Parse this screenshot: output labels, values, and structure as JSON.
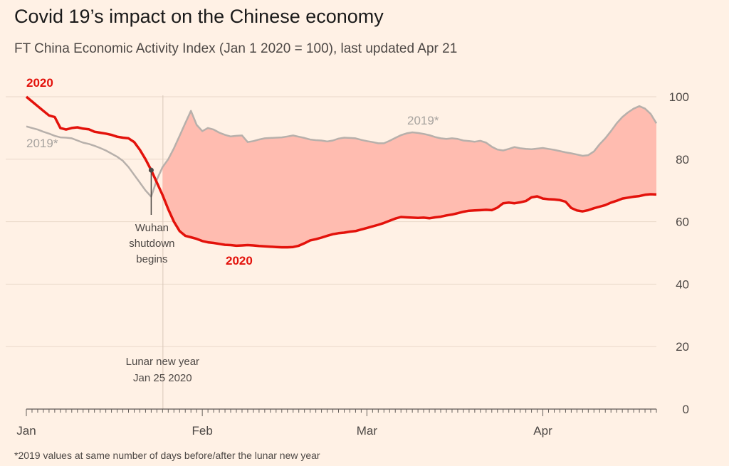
{
  "title": "Covid 19’s impact on the Chinese economy",
  "subtitle": "FT China Economic Activity Index (Jan 1 2020 = 100), last updated Apr 21",
  "footnote": "*2019 values at same number of days before/after the lunar new year",
  "colors": {
    "background": "#fff1e5",
    "line_2020": "#e3120b",
    "line_2019": "#b7b0ab",
    "fill_gap": "#ffbcb0",
    "grid": "#e9d8c9",
    "axis_text": "#4d4845"
  },
  "chart_data": {
    "type": "line",
    "title": "Covid 19’s impact on the Chinese economy",
    "ylabel": "FT China Economic Activity Index (Jan 1 2020 = 100)",
    "ylim": [
      0,
      100
    ],
    "yticks": [
      0,
      20,
      40,
      60,
      80,
      100
    ],
    "xlim": [
      1,
      112
    ],
    "x_unit": "day of year 2020",
    "xticks": [
      {
        "day": 1,
        "label": "Jan"
      },
      {
        "day": 32,
        "label": "Feb"
      },
      {
        "day": 61,
        "label": "Mar"
      },
      {
        "day": 92,
        "label": "Apr"
      }
    ],
    "series": [
      {
        "name": "2020",
        "label": "2020",
        "label2": "2020",
        "x": [
          1,
          2,
          3,
          4,
          5,
          6,
          7,
          8,
          9,
          10,
          11,
          12,
          13,
          14,
          15,
          16,
          17,
          18,
          19,
          20,
          21,
          22,
          23,
          24,
          25,
          26,
          27,
          28,
          29,
          30,
          31,
          32,
          33,
          34,
          35,
          36,
          37,
          38,
          39,
          40,
          41,
          42,
          43,
          44,
          45,
          46,
          47,
          48,
          49,
          50,
          51,
          52,
          53,
          54,
          55,
          56,
          57,
          58,
          59,
          60,
          61,
          62,
          63,
          64,
          65,
          66,
          67,
          68,
          69,
          70,
          71,
          72,
          73,
          74,
          75,
          76,
          77,
          78,
          79,
          80,
          81,
          82,
          83,
          84,
          85,
          86,
          87,
          88,
          89,
          90,
          91,
          92,
          93,
          94,
          95,
          96,
          97,
          98,
          99,
          100,
          101,
          102,
          103,
          104,
          105,
          106,
          107,
          108,
          109,
          110,
          111,
          112
        ],
        "values": [
          100,
          98.5,
          97,
          95.5,
          94,
          93.5,
          90,
          89.5,
          90,
          90.2,
          89.8,
          89.6,
          88.8,
          88.5,
          88.2,
          87.8,
          87.2,
          86.9,
          86.7,
          85.5,
          83,
          80,
          76.5,
          72.5,
          68.5,
          64,
          60,
          57,
          55.5,
          55,
          54.5,
          53.8,
          53.4,
          53.2,
          52.9,
          52.6,
          52.5,
          52.3,
          52.4,
          52.5,
          52.4,
          52.2,
          52.1,
          52,
          51.9,
          51.8,
          51.8,
          51.9,
          52.3,
          53.1,
          54,
          54.4,
          54.9,
          55.5,
          56,
          56.3,
          56.5,
          56.8,
          57,
          57.5,
          58,
          58.5,
          59,
          59.6,
          60.3,
          61,
          61.5,
          61.4,
          61.3,
          61.2,
          61.3,
          61.1,
          61.4,
          61.6,
          62,
          62.3,
          62.7,
          63.2,
          63.5,
          63.6,
          63.7,
          63.8,
          63.7,
          64.5,
          65.9,
          66.1,
          65.9,
          66.2,
          66.6,
          67.8,
          68.1,
          67.4,
          67.2,
          67.1,
          66.9,
          66.4,
          64.4,
          63.6,
          63.3,
          63.7,
          64.3,
          64.8,
          65.3,
          66.1,
          66.7,
          67.4,
          67.7,
          68,
          68.2,
          68.6,
          68.8,
          68.7
        ]
      },
      {
        "name": "2019*",
        "label": "2019*",
        "label2": "2019*",
        "x": [
          1,
          2,
          3,
          4,
          5,
          6,
          7,
          8,
          9,
          10,
          11,
          12,
          13,
          14,
          15,
          16,
          17,
          18,
          19,
          20,
          21,
          22,
          23,
          24,
          25,
          26,
          27,
          28,
          29,
          30,
          31,
          32,
          33,
          34,
          35,
          36,
          37,
          38,
          39,
          40,
          41,
          42,
          43,
          44,
          45,
          46,
          47,
          48,
          49,
          50,
          51,
          52,
          53,
          54,
          55,
          56,
          57,
          58,
          59,
          60,
          61,
          62,
          63,
          64,
          65,
          66,
          67,
          68,
          69,
          70,
          71,
          72,
          73,
          74,
          75,
          76,
          77,
          78,
          79,
          80,
          81,
          82,
          83,
          84,
          85,
          86,
          87,
          88,
          89,
          90,
          91,
          92,
          93,
          94,
          95,
          96,
          97,
          98,
          99,
          100,
          101,
          102,
          103,
          104,
          105,
          106,
          107,
          108,
          109,
          110,
          111,
          112
        ],
        "values": [
          90.5,
          90,
          89.5,
          88.8,
          88.2,
          87.5,
          87,
          86.9,
          86.7,
          86,
          85.3,
          84.9,
          84.3,
          83.6,
          82.8,
          81.8,
          80.8,
          79.5,
          77.5,
          75,
          72.5,
          70,
          68,
          73.5,
          77.5,
          80,
          83.5,
          87.5,
          91.5,
          95.5,
          91,
          89,
          90,
          89.5,
          88.5,
          87.8,
          87.3,
          87.5,
          87.6,
          85.5,
          85.8,
          86.3,
          86.7,
          86.8,
          86.9,
          87,
          87.3,
          87.6,
          87.2,
          86.8,
          86.3,
          86.1,
          86,
          85.7,
          86,
          86.6,
          86.9,
          86.8,
          86.7,
          86.2,
          85.8,
          85.5,
          85.1,
          85.1,
          85.9,
          86.8,
          87.7,
          88.3,
          88.6,
          88.4,
          88.1,
          87.7,
          87.1,
          86.7,
          86.5,
          86.7,
          86.5,
          86,
          85.8,
          85.6,
          85.9,
          85.3,
          84,
          83.1,
          82.8,
          83.3,
          83.9,
          83.5,
          83.3,
          83.2,
          83.4,
          83.6,
          83.3,
          83,
          82.6,
          82.2,
          81.9,
          81.5,
          81.1,
          81.3,
          82.5,
          84.8,
          86.7,
          89,
          91.5,
          93.5,
          95,
          96.2,
          97,
          96.2,
          94.5,
          91.5
        ]
      }
    ],
    "annotations": [
      {
        "day": 23,
        "value": 76.5,
        "lines": [
          "Wuhan",
          "shutdown",
          "begins"
        ]
      },
      {
        "day": 25,
        "lines": [
          "Lunar new year",
          "Jan 25 2020"
        ]
      }
    ]
  }
}
